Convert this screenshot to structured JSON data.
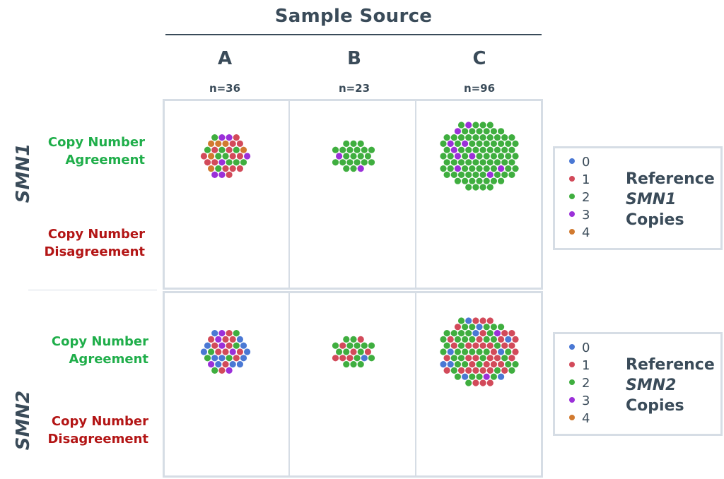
{
  "chart_data": {
    "type": "scatter",
    "title": "Sample Source",
    "columns": [
      {
        "label": "A",
        "n": "n=36"
      },
      {
        "label": "B",
        "n": "n=23"
      },
      {
        "label": "C",
        "n": "n=96"
      }
    ],
    "rows": [
      {
        "gene": "SMN1",
        "agreement": [
          "Copy Number",
          "Agreement"
        ],
        "disagreement": [
          "Copy Number",
          "Disagreement"
        ]
      },
      {
        "gene": "SMN2",
        "agreement": [
          "Copy Number",
          "Agreement"
        ],
        "disagreement": [
          "Copy Number",
          "Disagreement"
        ]
      }
    ],
    "legend_categories": [
      "0",
      "1",
      "2",
      "3",
      "4"
    ],
    "legends": [
      {
        "title": [
          "Reference",
          "SMN1",
          "Copies"
        ]
      },
      {
        "title": [
          "Reference",
          "SMN2",
          "Copies"
        ]
      }
    ],
    "colors": {
      "0": "#4a78d4",
      "1": "#d24a5a",
      "2": "#3fae3f",
      "3": "#9b30d9",
      "4": "#d17a30"
    },
    "counts": {
      "SMN1": {
        "A": {
          "agreement": {
            "0": 0,
            "1": 14,
            "2": 10,
            "3": 6,
            "4": 6
          },
          "disagreement": {
            "0": 0,
            "1": 0,
            "2": 0,
            "3": 0,
            "4": 0
          }
        },
        "B": {
          "agreement": {
            "0": 0,
            "1": 0,
            "2": 21,
            "3": 2,
            "4": 0
          },
          "disagreement": {
            "0": 0,
            "1": 0,
            "2": 0,
            "3": 0,
            "4": 0
          }
        },
        "C": {
          "agreement": {
            "0": 0,
            "1": 0,
            "2": 86,
            "3": 10,
            "4": 0
          },
          "disagreement": {
            "0": 0,
            "1": 0,
            "2": 0,
            "3": 0,
            "4": 0
          }
        }
      },
      "SMN2": {
        "A": {
          "agreement": {
            "0": 12,
            "1": 12,
            "2": 6,
            "3": 6,
            "4": 0
          },
          "disagreement": {
            "0": 0,
            "1": 0,
            "2": 0,
            "3": 0,
            "4": 0
          }
        },
        "B": {
          "agreement": {
            "0": 1,
            "1": 7,
            "2": 15,
            "3": 0,
            "4": 0
          },
          "disagreement": {
            "0": 0,
            "1": 0,
            "2": 0,
            "3": 0,
            "4": 0
          }
        },
        "C": {
          "agreement": {
            "0": 10,
            "1": 40,
            "2": 44,
            "3": 2,
            "4": 0
          },
          "disagreement": {
            "0": 0,
            "1": 0,
            "2": 0,
            "3": 0,
            "4": 0
          }
        }
      }
    },
    "layout_note": "beeswarm clusters in agreement band; disagreement band empty"
  }
}
